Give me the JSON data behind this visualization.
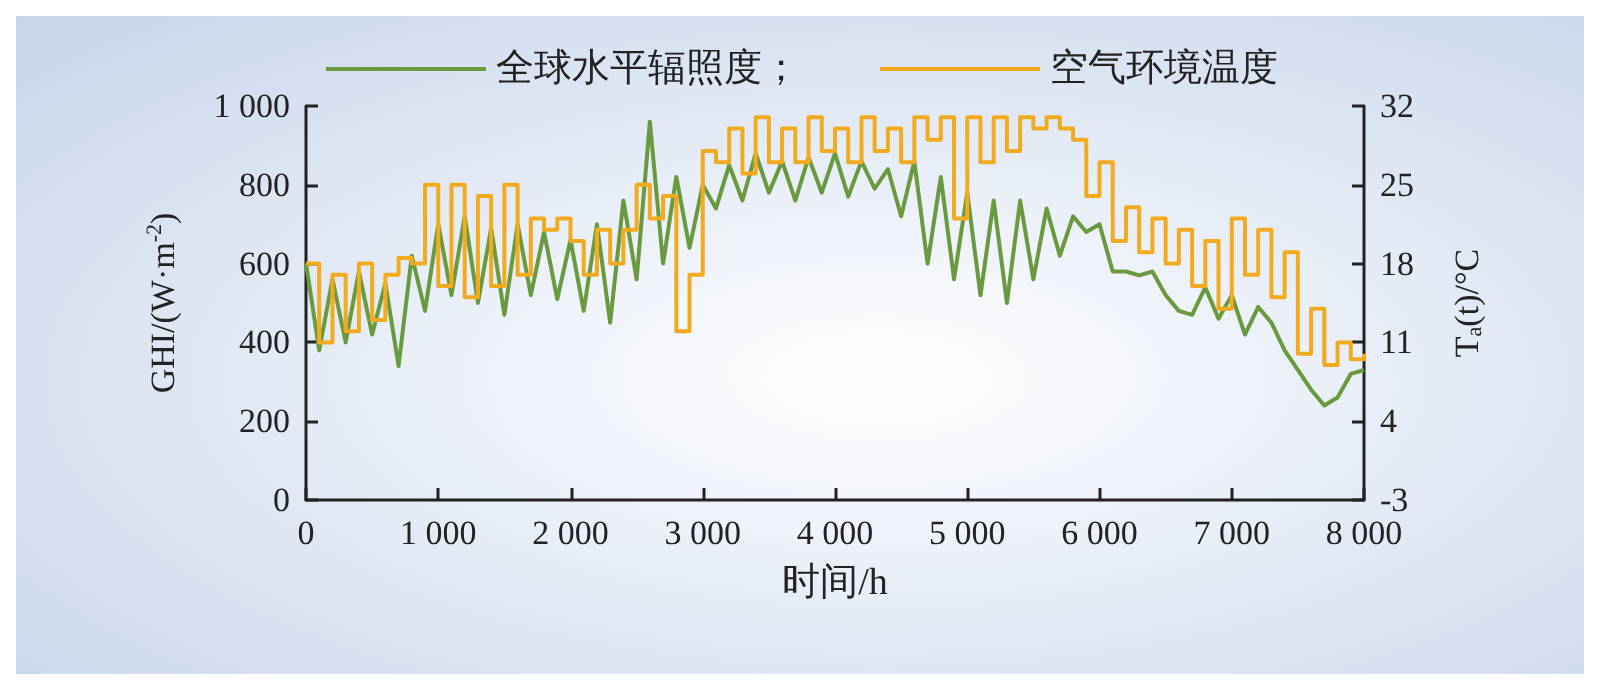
{
  "chart_data": {
    "type": "line",
    "xlabel": "时间/h",
    "ylabel": "GHI/(W·m$^{-2}$)",
    "y2label": "T$_{a}$(t)/°C",
    "x": [
      0,
      100,
      200,
      300,
      400,
      500,
      600,
      700,
      800,
      900,
      1000,
      1100,
      1200,
      1300,
      1400,
      1500,
      1600,
      1700,
      1800,
      1900,
      2000,
      2100,
      2200,
      2300,
      2400,
      2500,
      2600,
      2700,
      2800,
      2900,
      3000,
      3100,
      3200,
      3300,
      3400,
      3500,
      3600,
      3700,
      3800,
      3900,
      4000,
      4100,
      4200,
      4300,
      4400,
      4500,
      4600,
      4700,
      4800,
      4900,
      5000,
      5100,
      5200,
      5300,
      5400,
      5500,
      5600,
      5700,
      5800,
      5900,
      6000,
      6100,
      6200,
      6300,
      6400,
      6500,
      6600,
      6700,
      6800,
      6900,
      7000,
      7100,
      7200,
      7300,
      7400,
      7500,
      7600,
      7700,
      7800,
      7900,
      8000
    ],
    "series": [
      {
        "name": "全球水平辐照度；",
        "color": "#6a9a3f",
        "values": [
          600,
          380,
          560,
          400,
          580,
          420,
          550,
          340,
          620,
          480,
          700,
          520,
          720,
          500,
          690,
          470,
          700,
          520,
          680,
          510,
          660,
          480,
          700,
          450,
          760,
          560,
          960,
          600,
          820,
          640,
          800,
          740,
          850,
          760,
          880,
          780,
          860,
          760,
          870,
          780,
          880,
          770,
          860,
          790,
          840,
          720,
          860,
          600,
          820,
          560,
          780,
          520,
          760,
          500,
          760,
          560,
          740,
          620,
          720,
          680,
          700,
          580,
          580,
          570,
          580,
          520,
          480,
          470,
          540,
          460,
          520,
          420,
          490,
          450,
          380,
          330,
          280,
          240,
          260,
          320,
          330
        ]
      },
      {
        "name": "空气环境温度",
        "type": "step",
        "axis": "y2",
        "color": "#f2ab1f",
        "values": [
          18,
          11,
          17,
          12,
          18,
          13,
          17,
          18.5,
          18,
          25,
          16,
          25,
          15,
          24,
          16,
          25,
          17,
          22,
          21,
          22,
          20,
          17,
          21,
          18,
          21,
          25,
          22,
          24,
          12,
          17,
          28,
          27,
          30,
          26,
          31,
          27,
          30,
          27,
          31,
          28,
          30,
          27,
          31,
          28,
          30,
          27,
          31,
          29,
          31,
          22,
          31,
          27,
          31,
          28,
          31,
          30,
          31,
          30,
          29,
          24,
          27,
          20,
          23,
          19,
          22,
          18,
          21,
          16,
          20,
          14,
          22,
          17,
          21,
          15,
          19,
          10,
          14,
          9,
          11,
          9.5,
          10
        ]
      }
    ],
    "xlim": [
      0,
      8000
    ],
    "xticks": [
      0,
      {
        "value": 1000,
        "label": "1 000"
      },
      {
        "value": 2000,
        "label": "2 000"
      },
      {
        "value": 3000,
        "label": "3 000"
      },
      {
        "value": 4000,
        "label": "4 000"
      },
      {
        "value": 5000,
        "label": "5 000"
      },
      {
        "value": 6000,
        "label": "6 000"
      },
      {
        "value": 7000,
        "label": "7 000"
      },
      {
        "value": 8000,
        "label": "8 000"
      }
    ],
    "ylim": [
      0,
      1000
    ],
    "yticks": [
      0,
      200,
      400,
      600,
      800,
      {
        "value": 1000,
        "label": "1 000"
      }
    ],
    "y2lim": [
      -3,
      32
    ],
    "y2ticks": [
      -3,
      4,
      11,
      18,
      25,
      32
    ],
    "legend": "top",
    "grid": false
  }
}
